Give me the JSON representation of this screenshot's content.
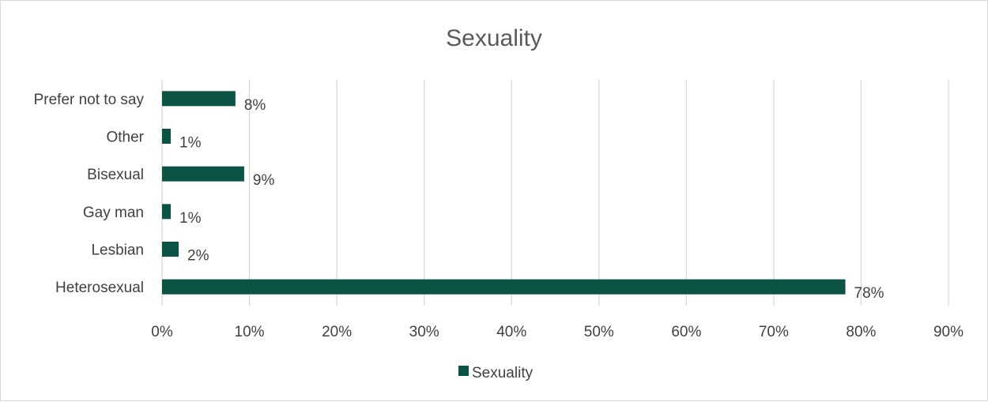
{
  "chart_data": {
    "type": "bar",
    "orientation": "horizontal",
    "title": "Sexuality",
    "categories": [
      "Heterosexual",
      "Lesbian",
      "Gay man",
      "Bisexual",
      "Other",
      "Prefer not to say"
    ],
    "series": [
      {
        "name": "Sexuality",
        "values": [
          78.2,
          1.9,
          1.0,
          9.4,
          1.0,
          8.4
        ],
        "data_labels": [
          "78%",
          "2%",
          "1%",
          "9%",
          "1%",
          "8%"
        ]
      }
    ],
    "xlim": [
      0,
      90
    ],
    "x_ticks": [
      0,
      10,
      20,
      30,
      40,
      50,
      60,
      70,
      80,
      90
    ],
    "x_tick_labels": [
      "0%",
      "10%",
      "20%",
      "30%",
      "40%",
      "50%",
      "60%",
      "70%",
      "80%",
      "90%"
    ],
    "grid": true,
    "legend": "bottom",
    "colors": {
      "bar": "#0b5345",
      "grid": "#d9d9d9",
      "text": "#404040",
      "title": "#595959"
    }
  }
}
